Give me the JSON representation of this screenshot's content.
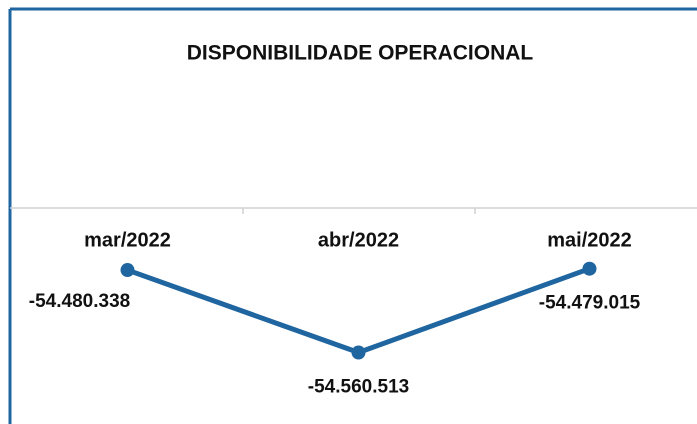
{
  "chart_data": {
    "type": "line",
    "title": "DISPONIBILIDADE OPERACIONAL",
    "categories": [
      "mar/2022",
      "abr/2022",
      "mai/2022"
    ],
    "series": [
      {
        "name": null,
        "color": "#1f65a0",
        "values": [
          -54480338,
          -54560513,
          -54479015
        ],
        "value_labels": [
          "-54.480.338",
          "-54.560.513",
          "-54.479.015"
        ]
      }
    ],
    "ylim": [
      -54630000,
      -54420000
    ]
  }
}
